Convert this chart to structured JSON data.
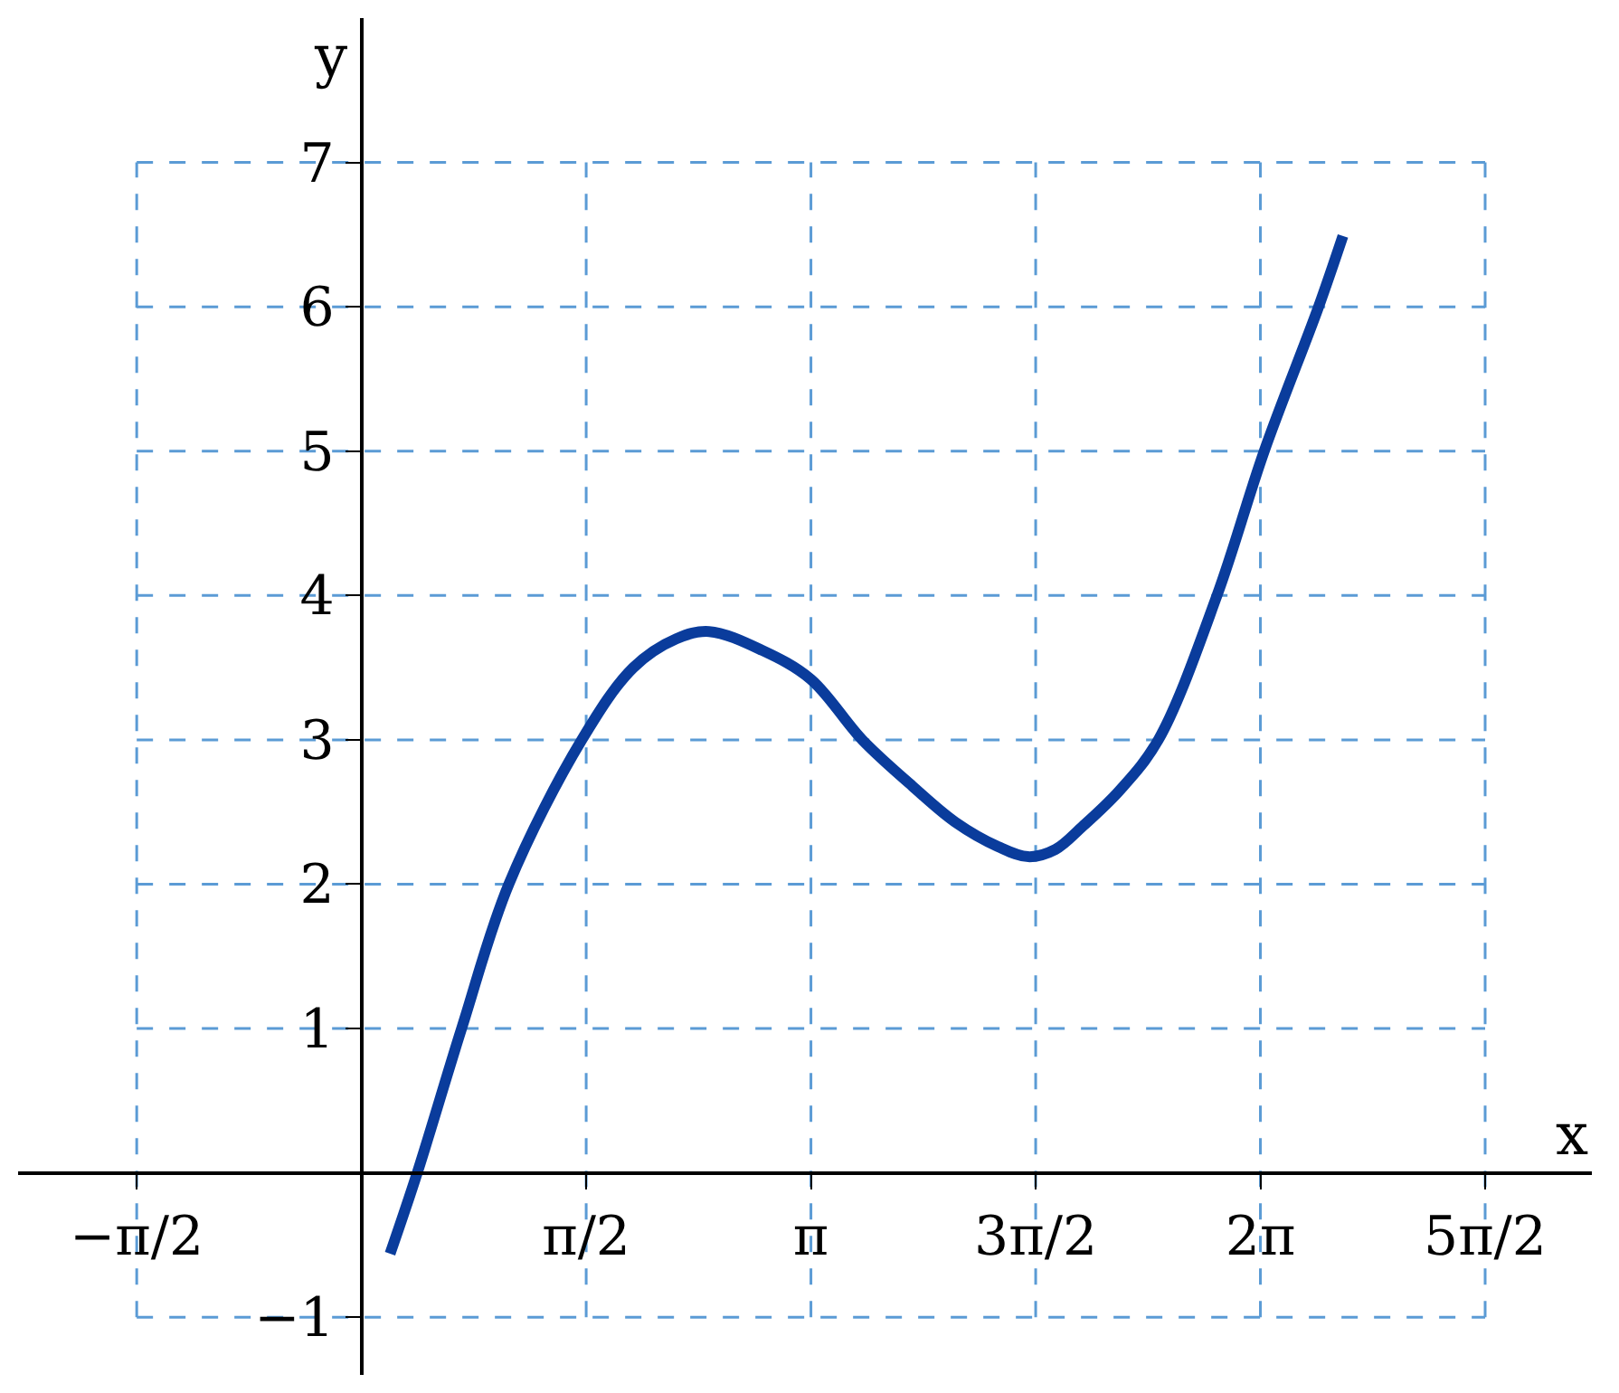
{
  "chart_data": {
    "type": "line",
    "xlabel": "x",
    "ylabel": "y",
    "x": [
      0.2,
      0.39,
      0.7,
      1.03,
      1.54,
      1.9,
      2.2,
      2.43,
      2.8,
      3.14,
      3.5,
      3.85,
      4.15,
      4.45,
      4.66,
      4.85,
      5.04,
      5.3,
      5.57,
      5.98,
      6.31,
      6.69,
      6.86
    ],
    "series": [
      {
        "color": "#0a3c9c",
        "values": [
          -0.56,
          0,
          1,
          2,
          3,
          3.5,
          3.7,
          3.75,
          3.62,
          3.42,
          3,
          2.68,
          2.43,
          2.26,
          2.19,
          2.24,
          2.4,
          2.65,
          3,
          4,
          5,
          6,
          6.49
        ]
      }
    ],
    "xlim": [
      -2.4,
      8.6
    ],
    "ylim": [
      -1.4,
      8
    ],
    "xticks": [
      {
        "value": -1.5708,
        "label": "−π/2"
      },
      {
        "value": 1.5708,
        "label": "π/2"
      },
      {
        "value": 3.1416,
        "label": "π"
      },
      {
        "value": 4.7124,
        "label": "3π/2"
      },
      {
        "value": 6.2832,
        "label": "2π"
      },
      {
        "value": 7.854,
        "label": "5π/2"
      }
    ],
    "yticks": [
      {
        "value": -1,
        "label": "−1"
      },
      1,
      2,
      3,
      4,
      5,
      6,
      7
    ],
    "grid": true,
    "marker": "none",
    "line_style": "solid"
  }
}
